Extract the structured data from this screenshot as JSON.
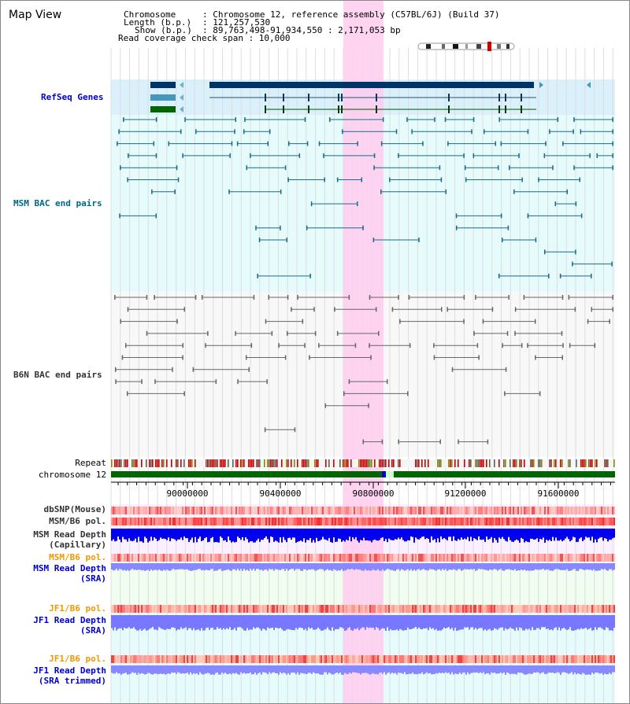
{
  "page_title": "Map View",
  "info": {
    "chromosome_key": "Chromosome",
    "chromosome_val": ": Chromosome 12, reference assembly (C57BL/6J) (Build 37)",
    "length_key": "Length (b.p.)",
    "length_val": ": 121,257,530",
    "show_key": "Show (b.p.)",
    "show_val": ": 89,763,498-91,934,550 : 2,171,053 bp",
    "coverage_line": "Read coverage check span : 10,000"
  },
  "tracks": {
    "refseq": "RefSeq Genes",
    "msm_bac": "MSM BAC end pairs",
    "b6n_bac": "B6N BAC end pairs",
    "repeat": "Repeat",
    "chromosome": "chromosome 12",
    "dbsnp": "dbSNP(Mouse)",
    "msm_b6_pol_1": "MSM/B6 pol.",
    "msm_read_cap_1": "MSM Read Depth",
    "msm_read_cap_2": "(Capillary)",
    "msm_b6_pol_2": "MSM/B6 pol.",
    "msm_read_sra_1": "MSM Read Depth",
    "msm_read_sra_2": "(SRA)",
    "jf1_pol_1": "JF1/B6 pol.",
    "jf1_read_sra_1": "JF1 Read Depth",
    "jf1_read_sra_2": "(SRA)",
    "jf1_pol_2": "JF1/B6 pol.",
    "jf1_read_trim_1": "JF1 Read Depth",
    "jf1_read_trim_2": "(SRA trimmed)"
  },
  "axis_ticks": [
    "90000000",
    "90400000",
    "90800000",
    "91200000",
    "91600000"
  ],
  "colors": {
    "label_blue": "#0000cc",
    "label_teal": "#006688",
    "label_dark": "#333333",
    "label_orange": "#ee9900",
    "highlight": "#ffccee"
  }
}
